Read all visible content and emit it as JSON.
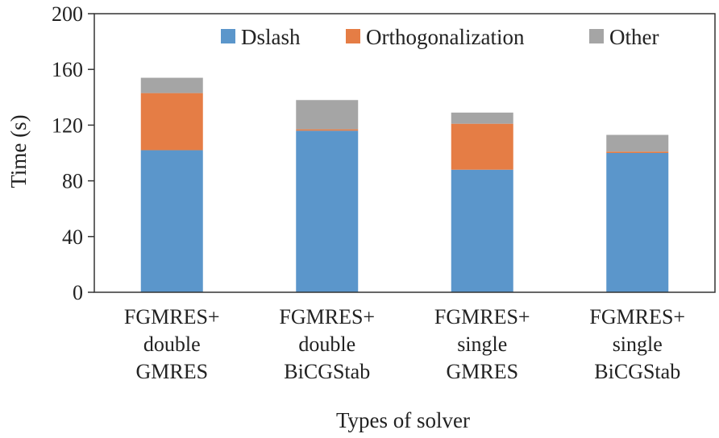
{
  "chart_data": {
    "type": "bar",
    "stacked": true,
    "categories": [
      [
        "FGMRES+",
        "double",
        "GMRES"
      ],
      [
        "FGMRES+",
        "double",
        "BiCGStab"
      ],
      [
        "FGMRES+",
        "single",
        "GMRES"
      ],
      [
        "FGMRES+",
        "single",
        "BiCGStab"
      ]
    ],
    "series": [
      {
        "name": "Dslash",
        "color": "#5b96cb",
        "values": [
          102,
          116,
          88,
          100
        ]
      },
      {
        "name": "Orthogonalization",
        "color": "#e57d45",
        "values": [
          41,
          1,
          33,
          1
        ]
      },
      {
        "name": "Other",
        "color": "#a5a5a5",
        "values": [
          11,
          21,
          8,
          12
        ]
      }
    ],
    "xlabel": "Types of solver",
    "ylabel": "Time (s)",
    "ylim": [
      0,
      200
    ],
    "yticks": [
      0,
      40,
      80,
      120,
      160,
      200
    ],
    "grid": false,
    "legend_position": "top-right"
  }
}
